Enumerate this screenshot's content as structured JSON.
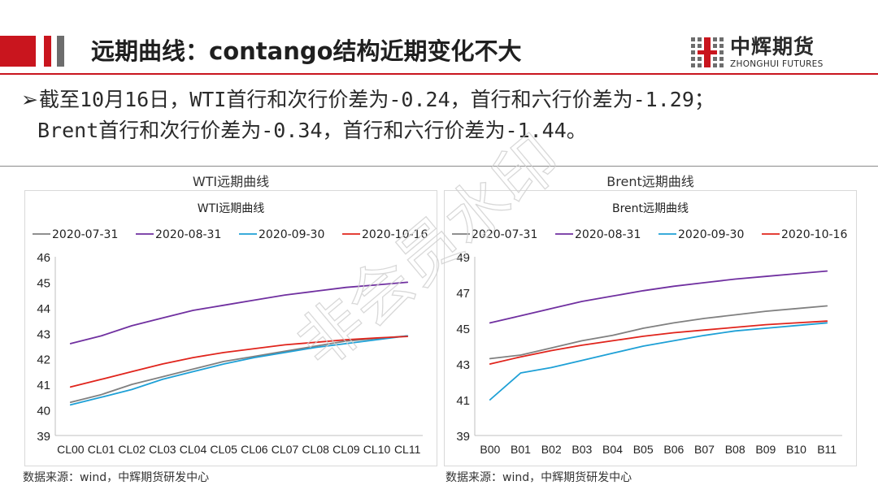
{
  "header": {
    "title": "远期曲线：contango结构近期变化不大",
    "accent_red": "#c9151e",
    "accent_gray": "#6d6d6d"
  },
  "logo": {
    "name_cn": "中辉期货",
    "name_en": "ZHONGHUI FUTURES"
  },
  "summary": {
    "lines": [
      "截至10月16日，WTI首行和次行价差为-0.24，首行和六行价差为-1.29；",
      "Brent首行和次行价差为-0.34，首行和六行价差为-1.44。"
    ]
  },
  "watermark": "非会员水印",
  "charts": [
    {
      "caption": "WTI远期曲线",
      "source": "数据来源：wind，中辉期货研发中心"
    },
    {
      "caption": "Brent远期曲线",
      "source": "数据来源：wind，中辉期货研发中心"
    }
  ],
  "chart_data": [
    {
      "type": "line",
      "title": "WTI远期曲线",
      "xlabel": "",
      "ylabel": "",
      "categories": [
        "CL00",
        "CL01",
        "CL02",
        "CL03",
        "CL04",
        "CL05",
        "CL06",
        "CL07",
        "CL08",
        "CL09",
        "CL10",
        "CL11"
      ],
      "ylim": [
        39,
        46
      ],
      "yticks": [
        39,
        40,
        41,
        42,
        43,
        44,
        45,
        46
      ],
      "grid": false,
      "legend": "top",
      "series": [
        {
          "name": "2020-07-31",
          "color": "#808080",
          "values": [
            40.3,
            40.6,
            41.0,
            41.3,
            41.6,
            41.9,
            42.1,
            42.3,
            42.5,
            42.7,
            42.8,
            42.9
          ]
        },
        {
          "name": "2020-08-31",
          "color": "#7030a0",
          "values": [
            42.6,
            42.9,
            43.3,
            43.6,
            43.9,
            44.1,
            44.3,
            44.5,
            44.65,
            44.8,
            44.9,
            45.0
          ]
        },
        {
          "name": "2020-09-30",
          "color": "#1ea0d6",
          "values": [
            40.2,
            40.5,
            40.8,
            41.2,
            41.5,
            41.8,
            42.05,
            42.25,
            42.45,
            42.6,
            42.75,
            42.9
          ]
        },
        {
          "name": "2020-10-16",
          "color": "#e0241c",
          "values": [
            40.9,
            41.2,
            41.5,
            41.8,
            42.05,
            42.25,
            42.4,
            42.55,
            42.65,
            42.75,
            42.82,
            42.88
          ]
        }
      ]
    },
    {
      "type": "line",
      "title": "Brent远期曲线",
      "xlabel": "",
      "ylabel": "",
      "categories": [
        "B00",
        "B01",
        "B02",
        "B03",
        "B04",
        "B05",
        "B06",
        "B07",
        "B08",
        "B09",
        "B10",
        "B11"
      ],
      "ylim": [
        39,
        49
      ],
      "yticks": [
        39,
        41,
        43,
        45,
        47,
        49
      ],
      "grid": false,
      "legend": "top",
      "series": [
        {
          "name": "2020-07-31",
          "color": "#808080",
          "values": [
            43.3,
            43.5,
            43.9,
            44.3,
            44.6,
            45.0,
            45.3,
            45.55,
            45.75,
            45.95,
            46.1,
            46.25
          ]
        },
        {
          "name": "2020-08-31",
          "color": "#7030a0",
          "values": [
            45.3,
            45.7,
            46.1,
            46.5,
            46.8,
            47.1,
            47.35,
            47.55,
            47.75,
            47.9,
            48.05,
            48.2
          ]
        },
        {
          "name": "2020-09-30",
          "color": "#1ea0d6",
          "values": [
            41.0,
            42.5,
            42.8,
            43.2,
            43.6,
            44.0,
            44.3,
            44.6,
            44.85,
            45.0,
            45.15,
            45.3
          ]
        },
        {
          "name": "2020-10-16",
          "color": "#e0241c",
          "values": [
            43.0,
            43.4,
            43.75,
            44.05,
            44.3,
            44.55,
            44.75,
            44.9,
            45.05,
            45.2,
            45.3,
            45.4
          ]
        }
      ]
    }
  ]
}
